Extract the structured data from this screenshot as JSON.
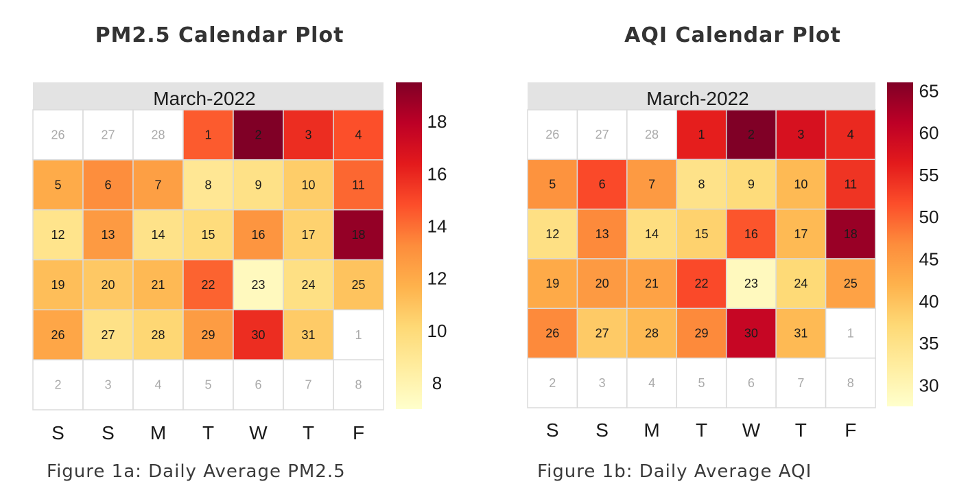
{
  "chart_data": [
    {
      "type": "heatmap",
      "title": "PM2.5 Calendar Plot",
      "month_label": "March-2022",
      "caption": "Figure 1a: Daily Average PM2.5",
      "weekday_labels": [
        "S",
        "S",
        "M",
        "T",
        "W",
        "T",
        "F"
      ],
      "colorbar_ticks": [
        "18",
        "16",
        "14",
        "12",
        "10",
        "8"
      ],
      "colorbar_range": [
        7,
        19.5
      ],
      "cells": [
        {
          "label": "26",
          "value": null
        },
        {
          "label": "27",
          "value": null
        },
        {
          "label": "28",
          "value": null
        },
        {
          "label": "1",
          "value": 14.5
        },
        {
          "label": "2",
          "value": 19.5
        },
        {
          "label": "3",
          "value": 15.8
        },
        {
          "label": "4",
          "value": 14.8
        },
        {
          "label": "5",
          "value": 12.0
        },
        {
          "label": "6",
          "value": 13.2
        },
        {
          "label": "7",
          "value": 12.5
        },
        {
          "label": "8",
          "value": 9.0
        },
        {
          "label": "9",
          "value": 9.5
        },
        {
          "label": "10",
          "value": 10.6
        },
        {
          "label": "11",
          "value": 14.2
        },
        {
          "label": "12",
          "value": 9.3
        },
        {
          "label": "13",
          "value": 12.7
        },
        {
          "label": "14",
          "value": 9.4
        },
        {
          "label": "15",
          "value": 9.9
        },
        {
          "label": "16",
          "value": 12.9
        },
        {
          "label": "17",
          "value": 10.4
        },
        {
          "label": "18",
          "value": 19.0
        },
        {
          "label": "19",
          "value": 11.2
        },
        {
          "label": "20",
          "value": 10.8
        },
        {
          "label": "21",
          "value": 11.4
        },
        {
          "label": "22",
          "value": 14.3
        },
        {
          "label": "23",
          "value": 7.5
        },
        {
          "label": "24",
          "value": 9.6
        },
        {
          "label": "25",
          "value": 11.0
        },
        {
          "label": "26",
          "value": 12.2
        },
        {
          "label": "27",
          "value": 9.5
        },
        {
          "label": "28",
          "value": 10.2
        },
        {
          "label": "29",
          "value": 12.6
        },
        {
          "label": "30",
          "value": 15.8
        },
        {
          "label": "31",
          "value": 10.7
        },
        {
          "label": "1",
          "value": null
        },
        {
          "label": "2",
          "value": null
        },
        {
          "label": "3",
          "value": null
        },
        {
          "label": "4",
          "value": null
        },
        {
          "label": "5",
          "value": null
        },
        {
          "label": "6",
          "value": null
        },
        {
          "label": "7",
          "value": null
        },
        {
          "label": "8",
          "value": null
        }
      ]
    },
    {
      "type": "heatmap",
      "title": "AQI Calendar Plot",
      "month_label": "March-2022",
      "caption": "Figure 1b: Daily Average AQI",
      "weekday_labels": [
        "S",
        "S",
        "M",
        "T",
        "W",
        "T",
        "F"
      ],
      "colorbar_ticks": [
        "65",
        "60",
        "55",
        "50",
        "45",
        "40",
        "35",
        "30"
      ],
      "colorbar_range": [
        27.5,
        66
      ],
      "cells": [
        {
          "label": "26",
          "value": null
        },
        {
          "label": "27",
          "value": null
        },
        {
          "label": "28",
          "value": null
        },
        {
          "label": "1",
          "value": 56
        },
        {
          "label": "2",
          "value": 66
        },
        {
          "label": "3",
          "value": 58
        },
        {
          "label": "4",
          "value": 55
        },
        {
          "label": "5",
          "value": 46
        },
        {
          "label": "6",
          "value": 52
        },
        {
          "label": "7",
          "value": 45
        },
        {
          "label": "8",
          "value": 35
        },
        {
          "label": "9",
          "value": 36.5
        },
        {
          "label": "10",
          "value": 41
        },
        {
          "label": "11",
          "value": 54
        },
        {
          "label": "12",
          "value": 35.5
        },
        {
          "label": "13",
          "value": 47
        },
        {
          "label": "14",
          "value": 36
        },
        {
          "label": "15",
          "value": 38
        },
        {
          "label": "16",
          "value": 51
        },
        {
          "label": "17",
          "value": 41
        },
        {
          "label": "18",
          "value": 64
        },
        {
          "label": "19",
          "value": 43
        },
        {
          "label": "20",
          "value": 45
        },
        {
          "label": "21",
          "value": 44
        },
        {
          "label": "22",
          "value": 52
        },
        {
          "label": "23",
          "value": 29
        },
        {
          "label": "24",
          "value": 37
        },
        {
          "label": "25",
          "value": 44
        },
        {
          "label": "26",
          "value": 47
        },
        {
          "label": "27",
          "value": 39
        },
        {
          "label": "28",
          "value": 41
        },
        {
          "label": "29",
          "value": 47
        },
        {
          "label": "30",
          "value": 60
        },
        {
          "label": "31",
          "value": 41
        },
        {
          "label": "1",
          "value": null
        },
        {
          "label": "2",
          "value": null
        },
        {
          "label": "3",
          "value": null
        },
        {
          "label": "4",
          "value": null
        },
        {
          "label": "5",
          "value": null
        },
        {
          "label": "6",
          "value": null
        },
        {
          "label": "7",
          "value": null
        },
        {
          "label": "8",
          "value": null
        }
      ]
    }
  ]
}
